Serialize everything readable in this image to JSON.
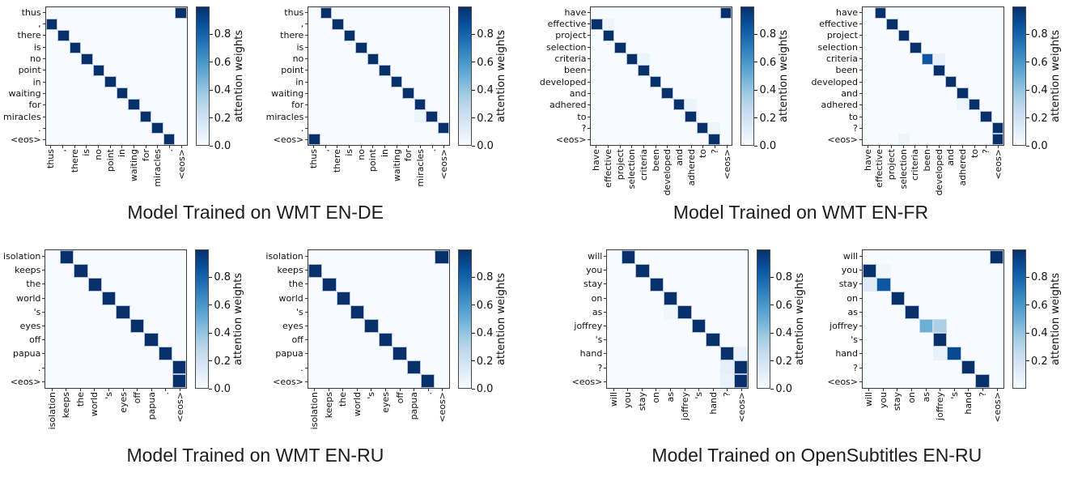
{
  "figure": {
    "captions": [
      "Model Trained on WMT EN-DE",
      "Model Trained on WMT EN-FR",
      "Model Trained on WMT EN-RU",
      "Model Trained on OpenSubtitles EN-RU"
    ],
    "colorbar_label": "attention weights",
    "colors": {
      "cmap_min": "#f7fbff",
      "cmap_max": "#08306b",
      "axis_spine": "#3a3a3a",
      "text": "#1c1c1c"
    }
  },
  "chart_data": [
    {
      "type": "heatmap",
      "group": "Model Trained on WMT EN-DE",
      "x_categories": [
        "thus",
        ",",
        "there",
        "is",
        "no",
        "point",
        "in",
        "waiting",
        "for",
        "miracles",
        ".",
        "<eos>"
      ],
      "y_categories": [
        "thus",
        ",",
        "there",
        "is",
        "no",
        "point",
        "in",
        "waiting",
        "for",
        "miracles",
        ".",
        "<eos>"
      ],
      "cells": [
        [
          0,
          11,
          1.0
        ],
        [
          1,
          0,
          1.0
        ],
        [
          2,
          1,
          1.0
        ],
        [
          3,
          2,
          1.0
        ],
        [
          4,
          3,
          1.0
        ],
        [
          5,
          4,
          1.0
        ],
        [
          6,
          5,
          1.0
        ],
        [
          7,
          6,
          1.0
        ],
        [
          8,
          7,
          1.0
        ],
        [
          9,
          8,
          1.0
        ],
        [
          10,
          9,
          1.0
        ],
        [
          11,
          10,
          1.0
        ]
      ],
      "value_range": [
        0,
        1
      ],
      "colorbar_ticks": [
        0.8,
        0.6,
        0.4,
        0.2,
        0.0
      ],
      "colorbar_label": "attention weights"
    },
    {
      "type": "heatmap",
      "group": "Model Trained on WMT EN-DE",
      "x_categories": [
        "thus",
        ",",
        "there",
        "is",
        "no",
        "point",
        "in",
        "waiting",
        "for",
        "miracles",
        ".",
        "<eos>"
      ],
      "y_categories": [
        "thus",
        ",",
        "there",
        "is",
        "no",
        "point",
        "in",
        "waiting",
        "for",
        "miracles",
        ".",
        "<eos>"
      ],
      "cells": [
        [
          0,
          1,
          1.0
        ],
        [
          1,
          2,
          1.0
        ],
        [
          2,
          3,
          1.0
        ],
        [
          3,
          4,
          1.0
        ],
        [
          4,
          5,
          1.0
        ],
        [
          5,
          6,
          1.0
        ],
        [
          6,
          7,
          1.0
        ],
        [
          7,
          8,
          1.0
        ],
        [
          8,
          9,
          1.0
        ],
        [
          9,
          9,
          0.06
        ],
        [
          9,
          10,
          1.0
        ],
        [
          10,
          11,
          1.0
        ],
        [
          11,
          0,
          1.0
        ]
      ],
      "value_range": [
        0,
        1
      ],
      "colorbar_ticks": [
        0.8,
        0.6,
        0.4,
        0.2,
        0.0
      ],
      "colorbar_label": "attention weights"
    },
    {
      "type": "heatmap",
      "group": "Model Trained on WMT EN-FR",
      "x_categories": [
        "have",
        "effective",
        "project",
        "selection",
        "criteria",
        "been",
        "developed",
        "and",
        "adhered",
        "to",
        "?",
        "<eos>"
      ],
      "y_categories": [
        "have",
        "effective",
        "project",
        "selection",
        "criteria",
        "been",
        "developed",
        "and",
        "adhered",
        "to",
        "?",
        "<eos>"
      ],
      "cells": [
        [
          0,
          11,
          1.0
        ],
        [
          1,
          0,
          1.0
        ],
        [
          1,
          1,
          0.05
        ],
        [
          2,
          1,
          1.0
        ],
        [
          3,
          2,
          1.0
        ],
        [
          4,
          3,
          1.0
        ],
        [
          4,
          4,
          0.06
        ],
        [
          5,
          4,
          1.0
        ],
        [
          6,
          5,
          1.0
        ],
        [
          7,
          6,
          1.0
        ],
        [
          8,
          7,
          1.0
        ],
        [
          8,
          8,
          0.06
        ],
        [
          9,
          8,
          1.0
        ],
        [
          10,
          9,
          1.0
        ],
        [
          10,
          10,
          0.05
        ],
        [
          11,
          10,
          1.0
        ]
      ],
      "value_range": [
        0,
        1
      ],
      "colorbar_ticks": [
        0.8,
        0.6,
        0.4,
        0.2,
        0.0
      ],
      "colorbar_label": "attention weights"
    },
    {
      "type": "heatmap",
      "group": "Model Trained on WMT EN-FR",
      "x_categories": [
        "have",
        "effective",
        "project",
        "selection",
        "criteria",
        "been",
        "developed",
        "and",
        "adhered",
        "to",
        "?",
        "<eos>"
      ],
      "y_categories": [
        "have",
        "effective",
        "project",
        "selection",
        "criteria",
        "been",
        "developed",
        "and",
        "adhered",
        "to",
        "?",
        "<eos>"
      ],
      "cells": [
        [
          0,
          1,
          1.0
        ],
        [
          1,
          2,
          1.0
        ],
        [
          2,
          3,
          1.0
        ],
        [
          3,
          4,
          1.0
        ],
        [
          4,
          5,
          0.85
        ],
        [
          4,
          6,
          0.08
        ],
        [
          5,
          6,
          1.0
        ],
        [
          6,
          7,
          1.0
        ],
        [
          7,
          8,
          1.0
        ],
        [
          8,
          8,
          0.05
        ],
        [
          8,
          9,
          1.0
        ],
        [
          9,
          10,
          1.0
        ],
        [
          10,
          11,
          1.0
        ],
        [
          11,
          3,
          0.05
        ],
        [
          11,
          11,
          1.0
        ]
      ],
      "value_range": [
        0,
        1
      ],
      "colorbar_ticks": [
        0.8,
        0.6,
        0.4,
        0.2,
        0.0
      ],
      "colorbar_label": "attention weights"
    },
    {
      "type": "heatmap",
      "group": "Model Trained on WMT EN-RU",
      "x_categories": [
        "isolation",
        "keeps",
        "the",
        "world",
        "'s",
        "eyes",
        "off",
        "papua",
        ".",
        "<eos>"
      ],
      "y_categories": [
        "isolation",
        "keeps",
        "the",
        "world",
        "'s",
        "eyes",
        "off",
        "papua",
        ".",
        "<eos>"
      ],
      "cells": [
        [
          0,
          1,
          1.0
        ],
        [
          1,
          2,
          1.0
        ],
        [
          2,
          3,
          1.0
        ],
        [
          3,
          4,
          1.0
        ],
        [
          4,
          5,
          1.0
        ],
        [
          5,
          6,
          1.0
        ],
        [
          6,
          7,
          1.0
        ],
        [
          7,
          8,
          1.0
        ],
        [
          8,
          9,
          1.0
        ],
        [
          9,
          9,
          1.0
        ]
      ],
      "value_range": [
        0,
        1
      ],
      "colorbar_ticks": [
        0.8,
        0.6,
        0.4,
        0.2,
        0.0
      ],
      "colorbar_label": "attention weights"
    },
    {
      "type": "heatmap",
      "group": "Model Trained on WMT EN-RU",
      "x_categories": [
        "isolation",
        "keeps",
        "the",
        "world",
        "'s",
        "eyes",
        "off",
        "papua",
        ".",
        "<eos>"
      ],
      "y_categories": [
        "isolation",
        "keeps",
        "the",
        "world",
        "'s",
        "eyes",
        "off",
        "papua",
        ".",
        "<eos>"
      ],
      "cells": [
        [
          0,
          9,
          1.0
        ],
        [
          1,
          0,
          1.0
        ],
        [
          2,
          1,
          1.0
        ],
        [
          3,
          2,
          1.0
        ],
        [
          4,
          3,
          1.0
        ],
        [
          5,
          4,
          1.0
        ],
        [
          6,
          5,
          1.0
        ],
        [
          7,
          6,
          1.0
        ],
        [
          8,
          7,
          1.0
        ],
        [
          9,
          8,
          1.0
        ]
      ],
      "value_range": [
        0,
        1
      ],
      "colorbar_ticks": [
        0.8,
        0.6,
        0.4,
        0.2,
        0.0
      ],
      "colorbar_label": "attention weights"
    },
    {
      "type": "heatmap",
      "group": "Model Trained on OpenSubtitles EN-RU",
      "x_categories": [
        "will",
        "you",
        "stay",
        "on",
        "as",
        "joffrey",
        "'s",
        "hand",
        "?",
        "<eos>"
      ],
      "y_categories": [
        "will",
        "you",
        "stay",
        "on",
        "as",
        "joffrey",
        "'s",
        "hand",
        "?",
        "<eos>"
      ],
      "cells": [
        [
          0,
          1,
          1.0
        ],
        [
          1,
          2,
          1.0
        ],
        [
          2,
          3,
          1.0
        ],
        [
          3,
          4,
          1.0
        ],
        [
          4,
          4,
          0.04
        ],
        [
          4,
          5,
          1.0
        ],
        [
          5,
          6,
          1.0
        ],
        [
          6,
          7,
          1.0
        ],
        [
          7,
          8,
          1.0
        ],
        [
          7,
          9,
          0.07
        ],
        [
          8,
          8,
          0.09
        ],
        [
          8,
          9,
          1.0
        ],
        [
          9,
          8,
          0.07
        ],
        [
          9,
          9,
          1.0
        ]
      ],
      "value_range": [
        0,
        1
      ],
      "colorbar_ticks": [
        0.8,
        0.6,
        0.4,
        0.2,
        0.0
      ],
      "colorbar_label": "attention weights"
    },
    {
      "type": "heatmap",
      "group": "Model Trained on OpenSubtitles EN-RU",
      "x_categories": [
        "will",
        "you",
        "stay",
        "on",
        "as",
        "joffrey",
        "'s",
        "hand",
        "?",
        "<eos>"
      ],
      "y_categories": [
        "will",
        "you",
        "stay",
        "on",
        "as",
        "joffrey",
        "'s",
        "hand",
        "?",
        "<eos>"
      ],
      "cells": [
        [
          0,
          9,
          1.0
        ],
        [
          1,
          0,
          1.0
        ],
        [
          1,
          1,
          0.04
        ],
        [
          2,
          0,
          0.12
        ],
        [
          2,
          1,
          0.85
        ],
        [
          3,
          2,
          1.0
        ],
        [
          4,
          3,
          1.0
        ],
        [
          5,
          4,
          0.5
        ],
        [
          5,
          5,
          0.33
        ],
        [
          6,
          5,
          1.0
        ],
        [
          7,
          5,
          0.07
        ],
        [
          7,
          6,
          0.9
        ],
        [
          8,
          7,
          1.0
        ],
        [
          9,
          8,
          1.0
        ]
      ],
      "value_range": [
        0,
        1
      ],
      "colorbar_ticks": [
        0.8,
        0.6,
        0.4,
        0.2
      ],
      "colorbar_label": "attention weights"
    }
  ]
}
